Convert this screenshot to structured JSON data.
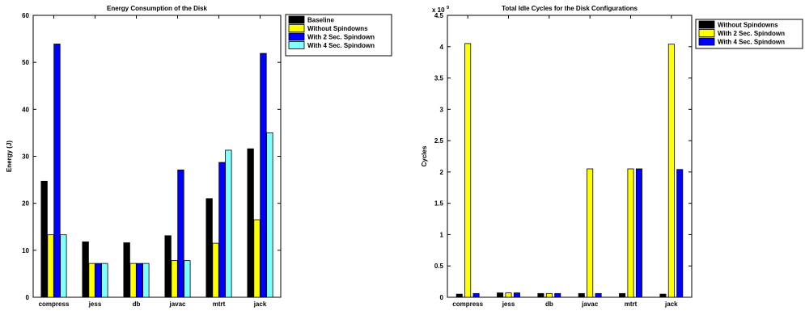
{
  "chart_data": [
    {
      "type": "bar",
      "title": "Energy Consumption of the Disk",
      "xlabel": "",
      "ylabel": "Energy (J)",
      "ylim": [
        0,
        60
      ],
      "yticks": [
        0,
        10,
        20,
        30,
        40,
        50,
        60
      ],
      "categories": [
        "compress",
        "jess",
        "db",
        "javac",
        "mtrt",
        "jack"
      ],
      "grid": false,
      "legend_position": "top-right, outside plot",
      "series": [
        {
          "name": "Baseline",
          "color": "#000000",
          "values": [
            24.7,
            11.8,
            11.6,
            13.1,
            21.0,
            31.6
          ]
        },
        {
          "name": "Without Spindowns",
          "color": "#ffff00",
          "values": [
            13.3,
            7.2,
            7.2,
            7.8,
            11.5,
            16.5
          ]
        },
        {
          "name": "With 2 Sec. Spindown",
          "color": "#0000ff",
          "values": [
            53.9,
            7.2,
            7.2,
            27.1,
            28.7,
            51.9
          ]
        },
        {
          "name": "With 4 Sec. Spindown",
          "color": "#7fffff",
          "values": [
            13.3,
            7.2,
            7.2,
            7.8,
            31.3,
            35.0
          ]
        }
      ]
    },
    {
      "type": "bar",
      "title": "Total Idle Cycles for the Disk Configurations",
      "xlabel": "",
      "ylabel": "Cycles",
      "ylim": [
        0,
        4.5
      ],
      "yticks": [
        0,
        0.5,
        1,
        1.5,
        2,
        2.5,
        3,
        3.5,
        4,
        4.5
      ],
      "y_multiplier": {
        "base": "x 10",
        "exponent": "9"
      },
      "categories": [
        "compress",
        "jess",
        "db",
        "javac",
        "mtrt",
        "jack"
      ],
      "grid": false,
      "legend_position": "top-right, outside plot",
      "series": [
        {
          "name": "Without Spindowns",
          "color": "#000000",
          "values": [
            0.05,
            0.07,
            0.06,
            0.06,
            0.06,
            0.05
          ]
        },
        {
          "name": "With 2 Sec. Spindown",
          "color": "#ffff00",
          "values": [
            4.05,
            0.07,
            0.06,
            2.05,
            2.05,
            4.04
          ]
        },
        {
          "name": "With 4 Sec. Spindown",
          "color": "#0000ff",
          "values": [
            0.06,
            0.07,
            0.06,
            0.06,
            2.05,
            2.04
          ]
        }
      ]
    }
  ]
}
